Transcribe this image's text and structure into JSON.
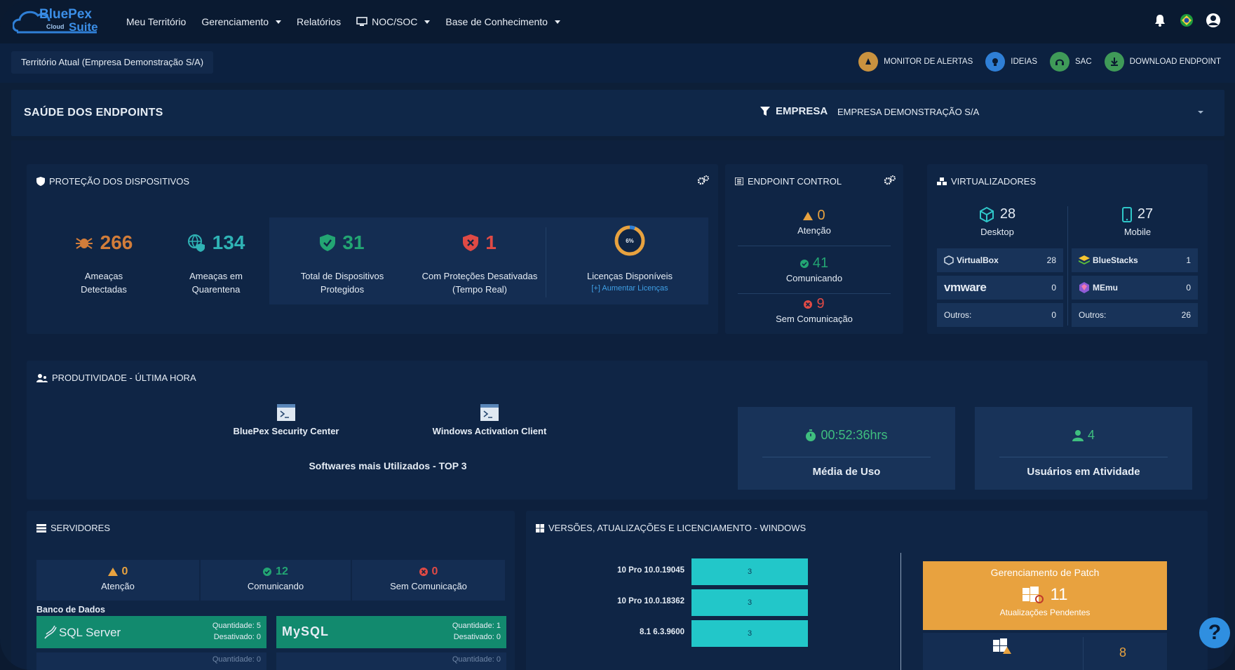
{
  "brand": {
    "name": "BluePex",
    "cloud": "Cloud",
    "suite": "Suite"
  },
  "nav": [
    {
      "label": "Meu Território",
      "dropdown": false
    },
    {
      "label": "Gerenciamento",
      "dropdown": true
    },
    {
      "label": "Relatórios",
      "dropdown": false
    },
    {
      "label": "NOC/SOC",
      "dropdown": true
    },
    {
      "label": "Base de Conhecimento",
      "dropdown": true
    }
  ],
  "territory": "Território Atual (Empresa Demonstração S/A)",
  "quicklinks": [
    {
      "label": "MONITOR DE ALERTAS",
      "color": "#c9923f"
    },
    {
      "label": "IDEIAS",
      "color": "#2f7fd6"
    },
    {
      "label": "SAC",
      "color": "#3f9a58"
    },
    {
      "label": "DOWNLOAD ENDPOINT",
      "color": "#3f9a58"
    }
  ],
  "health": {
    "title": "SAÚDE DOS ENDPOINTS",
    "filter_label": "EMPRESA",
    "company": "EMPRESA DEMONSTRAÇÃO S/A"
  },
  "protecao": {
    "title": "PROTEÇÃO DOS DISPOSITIVOS",
    "threats": {
      "value": "266",
      "label1": "Ameaças",
      "label2": "Detectadas"
    },
    "quarantine": {
      "value": "134",
      "label1": "Ameaças em",
      "label2": "Quarentena"
    },
    "protected": {
      "value": "31",
      "label1": "Total de Dispositivos",
      "label2": "Protegidos"
    },
    "disabled": {
      "value": "1",
      "label1": "Com Proteções Desativadas",
      "label2": "(Tempo Real)"
    },
    "licenses": {
      "percent": "6%",
      "label": "Licenças Disponíveis",
      "link": "[+] Aumentar Licenças",
      "fraction": 0.06
    }
  },
  "endpoint": {
    "title": "ENDPOINT CONTROL",
    "attention": {
      "value": "0",
      "label": "Atenção"
    },
    "communicating": {
      "value": "41",
      "label": "Comunicando"
    },
    "no_comm": {
      "value": "9",
      "label": "Sem Comunicação"
    }
  },
  "virt": {
    "title": "VIRTUALIZADORES",
    "desktop": {
      "value": "28",
      "label": "Desktop"
    },
    "mobile": {
      "value": "27",
      "label": "Mobile"
    },
    "left": [
      {
        "name": "VirtualBox",
        "value": "28"
      },
      {
        "name": "vmware",
        "value": "0"
      },
      {
        "name": "Outros:",
        "value": "0"
      }
    ],
    "right": [
      {
        "name": "BlueStacks",
        "value": "1"
      },
      {
        "name": "MEmu",
        "value": "0"
      },
      {
        "name": "Outros:",
        "value": "26"
      }
    ]
  },
  "prod": {
    "title": "PRODUTIVIDADE - ÚLTIMA HORA",
    "apps": [
      "BluePex Security Center",
      "Windows Activation Client"
    ],
    "top_label": "Softwares mais Utilizados - TOP 3",
    "usage": {
      "value": "00:52:36hrs",
      "label": "Média de Uso"
    },
    "users": {
      "value": "4",
      "label": "Usuários em Atividade"
    }
  },
  "servers": {
    "title": "SERVIDORES",
    "attention": {
      "value": "0",
      "label": "Atenção"
    },
    "communicating": {
      "value": "12",
      "label": "Comunicando"
    },
    "no_comm": {
      "value": "0",
      "label": "Sem Comunicação"
    },
    "db_title": "Banco de Dados",
    "dbs": [
      {
        "name": "SQL Server",
        "qty": "Quantidade: 5",
        "off": "Desativado: 0"
      },
      {
        "name": "MySQL",
        "qty": "Quantidade: 1",
        "off": "Desativado: 0"
      }
    ],
    "db_next_left": "Quantidade: 0",
    "db_next_right": "Quantidade: 0"
  },
  "versions": {
    "title": "VERSÕES, ATUALIZAÇÕES E LICENCIAMENTO - WINDOWS",
    "chart_data": {
      "type": "bar",
      "orientation": "horizontal",
      "categories": [
        "10 Pro 10.0.19045",
        "10 Pro 10.0.18362",
        "8.1 6.3.9600"
      ],
      "values": [
        3,
        3,
        3
      ]
    },
    "patch": {
      "title": "Gerenciamento de Patch",
      "value": "11",
      "label": "Atualizações Pendentes",
      "below_value": "8"
    }
  },
  "help": "?"
}
